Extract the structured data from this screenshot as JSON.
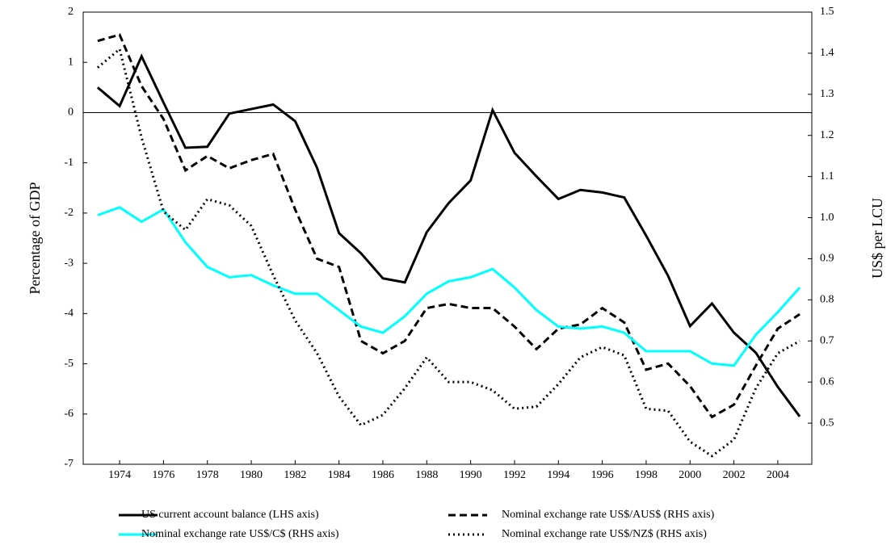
{
  "chart_data": {
    "type": "line",
    "ylabel": "Percentage of GDP",
    "y2label": "US$ per LCU",
    "x": [
      1973,
      1974,
      1975,
      1976,
      1977,
      1978,
      1979,
      1980,
      1981,
      1982,
      1983,
      1984,
      1985,
      1986,
      1987,
      1988,
      1989,
      1990,
      1991,
      1992,
      1993,
      1994,
      1995,
      1996,
      1997,
      1998,
      1999,
      2000,
      2001,
      2002,
      2003,
      2004,
      2005
    ],
    "xlim": [
      1972.34,
      2005.55
    ],
    "xticks": [
      1974,
      1976,
      1978,
      1980,
      1982,
      1984,
      1986,
      1988,
      1990,
      1992,
      1994,
      1996,
      1998,
      2000,
      2002,
      2004
    ],
    "ylim": [
      -7,
      2
    ],
    "yticks": [
      -7,
      -6,
      -5,
      -4,
      -3,
      -2,
      -1,
      0,
      1,
      2
    ],
    "y2lim": [
      0.4,
      1.5
    ],
    "y2ticks": [
      0.5,
      0.6,
      0.7,
      0.8,
      0.9,
      {
        "value": 1,
        "label": "1.0"
      },
      1.1,
      1.2,
      1.3,
      1.4,
      1.5
    ],
    "zero_line": true,
    "series": [
      {
        "name": "US current account balance (LHS axis)",
        "color": "#000000",
        "style": "solid",
        "values": [
          0.5,
          0.13,
          1.12,
          0.2,
          -0.7,
          -0.68,
          -0.02,
          0.07,
          0.16,
          -0.17,
          -1.1,
          -2.4,
          -2.8,
          -3.3,
          -3.38,
          -2.38,
          -1.8,
          -1.35,
          0.05,
          -0.8,
          -1.27,
          -1.72,
          -1.54,
          -1.59,
          -1.69,
          -2.45,
          -3.25,
          -4.25,
          -3.8,
          -4.38,
          -4.78,
          -5.46,
          -6.05
        ]
      },
      {
        "name": "Nominal exchange rate US$/AUS$ (RHS axis)",
        "color": "#000000",
        "style": "dashed",
        "axis": "y2",
        "values": [
          1.43,
          1.445,
          1.32,
          1.24,
          1.115,
          1.15,
          1.12,
          1.14,
          1.155,
          1.02,
          0.9,
          0.88,
          0.7,
          0.67,
          0.7,
          0.78,
          0.79,
          0.78,
          0.78,
          0.735,
          0.68,
          0.73,
          0.74,
          0.78,
          0.745,
          0.63,
          0.645,
          0.59,
          0.515,
          0.545,
          0.64,
          0.73,
          0.765
        ]
      },
      {
        "name": "Nominal exchange rate US$/C$ (RHS axis)",
        "color": "#00ffff",
        "style": "solid",
        "axis": "y2",
        "values": [
          1.006,
          1.025,
          0.99,
          1.02,
          0.94,
          0.88,
          0.855,
          0.86,
          0.835,
          0.815,
          0.815,
          0.775,
          0.735,
          0.72,
          0.76,
          0.815,
          0.845,
          0.855,
          0.875,
          0.83,
          0.775,
          0.735,
          0.73,
          0.735,
          0.72,
          0.675,
          0.675,
          0.675,
          0.645,
          0.64,
          0.715,
          0.77,
          0.83
        ]
      },
      {
        "name": "Nominal exchange rate US$/NZ$ (RHS axis)",
        "color": "#000000",
        "style": "dotted",
        "axis": "y2",
        "values": [
          1.365,
          1.41,
          1.195,
          1.015,
          0.97,
          1.045,
          1.03,
          0.98,
          0.86,
          0.75,
          0.67,
          0.565,
          0.495,
          0.52,
          0.585,
          0.66,
          0.6,
          0.6,
          0.58,
          0.535,
          0.54,
          0.595,
          0.66,
          0.685,
          0.665,
          0.535,
          0.53,
          0.455,
          0.42,
          0.46,
          0.585,
          0.67,
          0.7
        ]
      }
    ]
  }
}
